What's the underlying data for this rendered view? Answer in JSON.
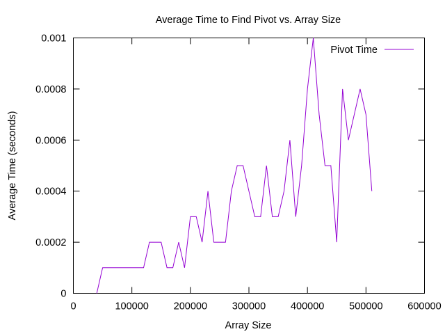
{
  "chart_data": {
    "type": "line",
    "title": "Average Time to Find Pivot vs. Array Size",
    "xlabel": "Array Size",
    "ylabel": "Average Time (seconds)",
    "xlim": [
      0,
      600000
    ],
    "ylim": [
      0,
      0.001
    ],
    "xticks": [
      0,
      100000,
      200000,
      300000,
      400000,
      500000,
      600000
    ],
    "yticks": [
      0,
      0.0002,
      0.0004,
      0.0006,
      0.0008,
      0.001
    ],
    "xtick_labels": [
      "0",
      "100000",
      "200000",
      "300000",
      "400000",
      "500000",
      "600000"
    ],
    "ytick_labels": [
      "0",
      "0.0002",
      "0.0004",
      "0.0006",
      "0.0008",
      "0.001"
    ],
    "grid": false,
    "legend_position": "top-right",
    "series": [
      {
        "name": "Pivot Time",
        "color": "#9400d3",
        "x": [
          40000,
          50000,
          60000,
          70000,
          80000,
          90000,
          100000,
          110000,
          120000,
          130000,
          140000,
          150000,
          160000,
          170000,
          180000,
          190000,
          200000,
          210000,
          220000,
          230000,
          240000,
          250000,
          260000,
          270000,
          280000,
          290000,
          300000,
          310000,
          320000,
          330000,
          340000,
          350000,
          360000,
          370000,
          380000,
          390000,
          400000,
          410000,
          420000,
          430000,
          440000,
          450000,
          460000,
          470000,
          480000,
          490000,
          500000,
          510000
        ],
        "values": [
          0,
          0.0001,
          0.0001,
          0.0001,
          0.0001,
          0.0001,
          0.0001,
          0.0001,
          0.0001,
          0.0002,
          0.0002,
          0.0002,
          0.0001,
          0.0001,
          0.0002,
          0.0001,
          0.0003,
          0.0003,
          0.0002,
          0.0004,
          0.0002,
          0.0002,
          0.0002,
          0.0004,
          0.0005,
          0.0005,
          0.0004,
          0.0003,
          0.0003,
          0.0005,
          0.0003,
          0.0003,
          0.0004,
          0.0006,
          0.0003,
          0.0005,
          0.0008,
          0.001,
          0.0007,
          0.0005,
          0.0005,
          0.0002,
          0.0008,
          0.0006,
          0.0007,
          0.0008,
          0.0007,
          0.0004
        ]
      }
    ]
  }
}
